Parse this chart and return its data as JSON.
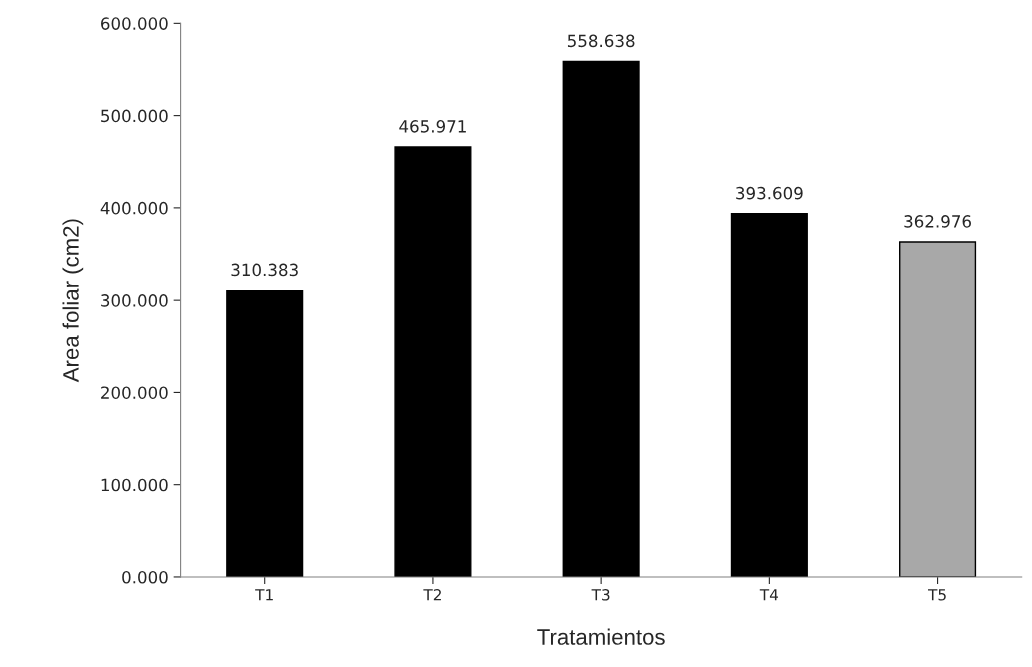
{
  "chart_data": {
    "type": "bar",
    "xlabel": "Tratamientos",
    "ylabel": "Area foliar (cm2)",
    "categories": [
      "T1",
      "T2",
      "T3",
      "T4",
      "T5"
    ],
    "values": [
      310.383,
      465.971,
      558.638,
      393.609,
      362.976
    ],
    "value_labels": [
      "310.383",
      "465.971",
      "558.638",
      "393.609",
      "362.976"
    ],
    "colors": [
      "#000000",
      "#000000",
      "#000000",
      "#000000",
      "#a8a8a8"
    ],
    "ylim": [
      0,
      600
    ],
    "yticks": [
      {
        "value": 0,
        "label": "0.000"
      },
      {
        "value": 100,
        "label": "100.000"
      },
      {
        "value": 200,
        "label": "200.000"
      },
      {
        "value": 300,
        "label": "300.000"
      },
      {
        "value": 400,
        "label": "400.000"
      },
      {
        "value": 500,
        "label": "500.000"
      },
      {
        "value": 600,
        "label": "600.000"
      }
    ],
    "grid": false,
    "legend": false
  }
}
